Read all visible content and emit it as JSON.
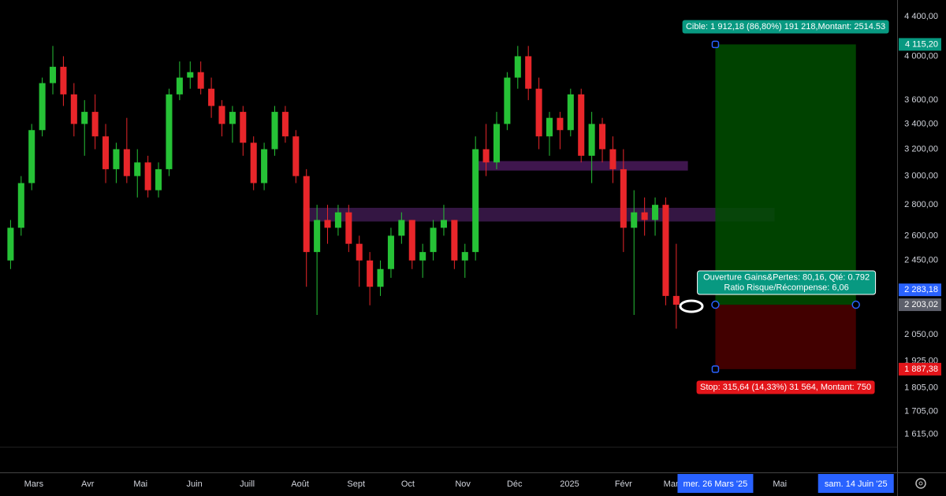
{
  "chart_data": {
    "type": "candlestick",
    "log_scale": true,
    "up_color": "#26c236",
    "down_color": "#e8262a",
    "x": [
      0,
      1,
      2,
      3,
      4,
      5,
      6,
      7,
      8,
      9,
      10,
      11,
      12,
      13,
      14,
      15,
      16,
      17,
      18,
      19,
      20,
      21,
      22,
      23,
      24,
      25,
      26,
      27,
      28,
      29,
      30,
      31,
      32,
      33,
      34,
      35,
      36,
      37,
      38,
      39,
      40,
      41,
      42,
      43,
      44,
      45,
      46,
      47,
      48,
      49,
      50,
      51,
      52,
      53,
      54,
      55,
      56,
      57,
      58,
      59,
      60,
      61,
      62,
      63
    ],
    "open": [
      2450,
      2650,
      2950,
      3350,
      3750,
      3900,
      3650,
      3400,
      3500,
      3300,
      3050,
      3200,
      3000,
      3100,
      2900,
      3050,
      3650,
      3800,
      3850,
      3700,
      3550,
      3400,
      3500,
      3250,
      2950,
      3200,
      3500,
      3300,
      3000,
      2500,
      2700,
      2650,
      2750,
      2550,
      2450,
      2300,
      2400,
      2600,
      2700,
      2450,
      2500,
      2650,
      2700,
      2450,
      2500,
      3200,
      3100,
      3400,
      3800,
      4000,
      3700,
      3300,
      3450,
      3350,
      3650,
      3150,
      3400,
      3200,
      3050,
      2650,
      2750,
      2700,
      2800,
      2250
    ],
    "high": [
      2700,
      3000,
      3400,
      3800,
      4100,
      4000,
      3750,
      3600,
      3650,
      3400,
      3250,
      3450,
      3200,
      3150,
      3100,
      3700,
      3950,
      3950,
      3950,
      3800,
      3600,
      3550,
      3550,
      3300,
      3250,
      3550,
      3550,
      3350,
      3050,
      2800,
      2800,
      2800,
      2800,
      2600,
      2500,
      2450,
      2650,
      2750,
      2700,
      2550,
      2700,
      2800,
      2700,
      2550,
      3300,
      3400,
      3500,
      3850,
      4100,
      4100,
      3800,
      3500,
      3500,
      3700,
      3700,
      3500,
      3450,
      3300,
      3200,
      2900,
      2850,
      2850,
      2850,
      2550
    ],
    "low": [
      2400,
      2600,
      2900,
      3300,
      3650,
      3550,
      3300,
      3150,
      3200,
      2950,
      2950,
      2950,
      2850,
      2850,
      2850,
      3000,
      3600,
      3700,
      3650,
      3450,
      3300,
      3250,
      3150,
      2900,
      2900,
      3150,
      3250,
      2950,
      2300,
      2150,
      2550,
      2600,
      2500,
      2300,
      2200,
      2250,
      2350,
      2550,
      2400,
      2350,
      2450,
      2600,
      2400,
      2350,
      2450,
      3000,
      3050,
      3350,
      3700,
      3600,
      3200,
      3150,
      3200,
      3300,
      3100,
      2950,
      3100,
      2950,
      2500,
      2150,
      2600,
      2600,
      2200,
      2080
    ],
    "close": [
      2650,
      2950,
      3350,
      3750,
      3900,
      3650,
      3400,
      3500,
      3300,
      3050,
      3200,
      3000,
      3100,
      2900,
      3050,
      3650,
      3800,
      3850,
      3700,
      3550,
      3400,
      3500,
      3250,
      2950,
      3200,
      3500,
      3300,
      3000,
      2500,
      2700,
      2650,
      2750,
      2550,
      2450,
      2300,
      2400,
      2600,
      2700,
      2450,
      2500,
      2650,
      2700,
      2450,
      2500,
      3200,
      3100,
      3400,
      3800,
      4000,
      3700,
      3300,
      3450,
      3350,
      3650,
      3150,
      3400,
      3200,
      3050,
      2650,
      2750,
      2700,
      2800,
      2250,
      2203.02
    ],
    "xlim": [
      -1,
      83.9
    ],
    "xticks": [
      {
        "value": 2.2,
        "label": "Mars"
      },
      {
        "value": 7.3,
        "label": "Avr"
      },
      {
        "value": 12.3,
        "label": "Mai"
      },
      {
        "value": 17.4,
        "label": "Juin"
      },
      {
        "value": 22.4,
        "label": "Juill"
      },
      {
        "value": 27.4,
        "label": "Août"
      },
      {
        "value": 32.7,
        "label": "Sept"
      },
      {
        "value": 37.6,
        "label": "Oct"
      },
      {
        "value": 42.8,
        "label": "Nov"
      },
      {
        "value": 47.7,
        "label": "Déc"
      },
      {
        "value": 52.9,
        "label": "2025"
      },
      {
        "value": 58,
        "label": "Févr"
      },
      {
        "value": 62.5,
        "label": "Mar"
      },
      {
        "value": 72.8,
        "label": "Mai"
      }
    ],
    "xticks_highlight": [
      {
        "value": 66.7,
        "label": "mer. 26 Mars '25"
      },
      {
        "value": 80,
        "label": "sam. 14 Juin '25"
      }
    ],
    "ylim": [
      1565,
      4578
    ],
    "yticks": [
      {
        "value": 4400,
        "label": "4 400,00"
      },
      {
        "value": 4000,
        "label": "4 000,00"
      },
      {
        "value": 3600,
        "label": "3 600,00"
      },
      {
        "value": 3400,
        "label": "3 400,00"
      },
      {
        "value": 3200,
        "label": "3 200,00"
      },
      {
        "value": 3000,
        "label": "3 000,00"
      },
      {
        "value": 2800,
        "label": "2 800,00"
      },
      {
        "value": 2600,
        "label": "2 600,00"
      },
      {
        "value": 2450,
        "label": "2 450,00"
      },
      {
        "value": 2050,
        "label": "2 050,00"
      },
      {
        "value": 1925,
        "label": "1 925,00"
      },
      {
        "value": 1805,
        "label": "1 805,00"
      },
      {
        "value": 1705,
        "label": "1 705,00"
      },
      {
        "value": 1615,
        "label": "1 615,00"
      }
    ],
    "zones": [
      {
        "x": [
          44.2,
          64.1
        ],
        "y": [
          3040,
          3110
        ],
        "color": "#4a1a5c"
      },
      {
        "x": [
          27.7,
          72.3
        ],
        "y": [
          2690,
          2780
        ],
        "color": "#3d1a4f"
      }
    ],
    "position": {
      "x": [
        66.7,
        80
      ],
      "target": {
        "value": 4115.2,
        "label": "4 115,20"
      },
      "entry": {
        "value": 2203.02,
        "label": "2 203,02"
      },
      "stop": {
        "value": 1887.38,
        "label": "1 887,38"
      },
      "target_text": "Cible: 1 912,18 (86,80%) 191 218,Montant: 2514.53",
      "summary": [
        "Ouverture Gains&Pertes: 80,16, Qté: 0.792",
        "Ratio Risque/Récompense: 6,06"
      ],
      "stop_text": "Stop: 315,64 (14,33%) 31 564, Montant: 750"
    },
    "price_line": {
      "value": 2283.18,
      "label": "2 283,18"
    }
  }
}
